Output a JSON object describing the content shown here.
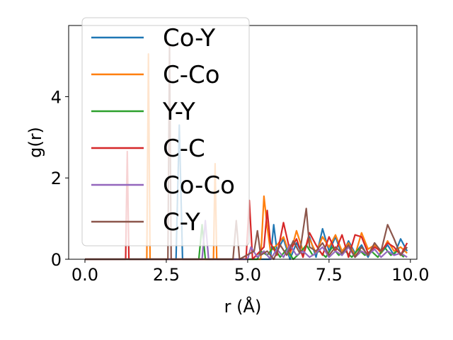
{
  "chart_data": {
    "type": "line",
    "xlabel": "r (Å)",
    "ylabel": "g(r)",
    "xlim": [
      -0.5,
      10.2
    ],
    "ylim": [
      0,
      5.75
    ],
    "xticks": [
      0.0,
      2.5,
      5.0,
      7.5,
      10.0
    ],
    "xtick_labels": [
      "0.0",
      "2.5",
      "5.0",
      "7.5",
      "10.0"
    ],
    "yticks": [
      0,
      2,
      4
    ],
    "ytick_labels": [
      "0",
      "2",
      "4"
    ],
    "grid": false,
    "legend_position": "upper-left",
    "series": [
      {
        "name": "Co-Y",
        "color": "#1f77b4",
        "points": [
          [
            0,
            0
          ],
          [
            2.8,
            0
          ],
          [
            2.9,
            3.3
          ],
          [
            3.0,
            0
          ],
          [
            5.7,
            0
          ],
          [
            5.8,
            0.85
          ],
          [
            5.9,
            0.2
          ],
          [
            6.1,
            0.5
          ],
          [
            6.3,
            0.0
          ],
          [
            6.5,
            0.4
          ],
          [
            6.7,
            0.1
          ],
          [
            6.9,
            0.55
          ],
          [
            7.1,
            0.05
          ],
          [
            7.3,
            0.75
          ],
          [
            7.5,
            0.2
          ],
          [
            7.7,
            0.55
          ],
          [
            7.9,
            0.1
          ],
          [
            8.1,
            0.45
          ],
          [
            8.3,
            0.15
          ],
          [
            8.5,
            0.35
          ],
          [
            8.7,
            0.05
          ],
          [
            8.9,
            0.4
          ],
          [
            9.1,
            0.15
          ],
          [
            9.3,
            0.35
          ],
          [
            9.5,
            0.1
          ],
          [
            9.7,
            0.5
          ],
          [
            9.9,
            0.2
          ]
        ]
      },
      {
        "name": "C-Co",
        "color": "#ff7f0e",
        "points": [
          [
            0,
            0
          ],
          [
            1.9,
            0
          ],
          [
            1.95,
            5.05
          ],
          [
            2.0,
            0
          ],
          [
            3.95,
            0
          ],
          [
            4.0,
            2.35
          ],
          [
            4.05,
            0
          ],
          [
            5.4,
            0
          ],
          [
            5.5,
            1.55
          ],
          [
            5.6,
            0.8
          ],
          [
            5.7,
            0.2
          ],
          [
            5.9,
            0.35
          ],
          [
            6.1,
            0.55
          ],
          [
            6.3,
            0.1
          ],
          [
            6.5,
            0.7
          ],
          [
            6.7,
            0.2
          ],
          [
            6.9,
            0.5
          ],
          [
            7.1,
            0.15
          ],
          [
            7.3,
            0.55
          ],
          [
            7.5,
            0.3
          ],
          [
            7.7,
            0.6
          ],
          [
            7.9,
            0.2
          ],
          [
            8.1,
            0.4
          ],
          [
            8.3,
            0.1
          ],
          [
            8.5,
            0.65
          ],
          [
            8.7,
            0.25
          ],
          [
            8.9,
            0.35
          ],
          [
            9.1,
            0.15
          ],
          [
            9.3,
            0.45
          ],
          [
            9.5,
            0.2
          ],
          [
            9.7,
            0.3
          ],
          [
            9.9,
            0.15
          ]
        ]
      },
      {
        "name": "Y-Y",
        "color": "#2ca02c",
        "points": [
          [
            0,
            0
          ],
          [
            3.5,
            0
          ],
          [
            3.6,
            0.85
          ],
          [
            3.7,
            0
          ],
          [
            5.3,
            0
          ],
          [
            5.4,
            0.2
          ],
          [
            5.6,
            0.1
          ],
          [
            5.8,
            0.3
          ],
          [
            6.0,
            0.05
          ],
          [
            6.2,
            0.25
          ],
          [
            6.4,
            0.0
          ],
          [
            6.6,
            0.15
          ],
          [
            6.8,
            0.35
          ],
          [
            7.0,
            0.1
          ],
          [
            7.2,
            0.2
          ],
          [
            7.4,
            0.05
          ],
          [
            7.6,
            0.3
          ],
          [
            7.8,
            0.1
          ],
          [
            8.0,
            0.2
          ],
          [
            8.2,
            0.05
          ],
          [
            8.4,
            0.25
          ],
          [
            8.6,
            0.1
          ],
          [
            8.8,
            0.2
          ],
          [
            9.0,
            0.05
          ],
          [
            9.2,
            0.3
          ],
          [
            9.4,
            0.1
          ],
          [
            9.6,
            0.2
          ],
          [
            9.8,
            0.05
          ]
        ]
      },
      {
        "name": "C-C",
        "color": "#d62728",
        "points": [
          [
            0,
            0
          ],
          [
            1.25,
            0
          ],
          [
            1.3,
            2.65
          ],
          [
            1.35,
            0
          ],
          [
            4.95,
            0
          ],
          [
            5.05,
            1.45
          ],
          [
            5.15,
            0
          ],
          [
            5.5,
            0.3
          ],
          [
            5.6,
            1.2
          ],
          [
            5.7,
            0.4
          ],
          [
            5.9,
            0.1
          ],
          [
            6.1,
            0.9
          ],
          [
            6.3,
            0.2
          ],
          [
            6.5,
            0.5
          ],
          [
            6.7,
            0.05
          ],
          [
            6.9,
            0.65
          ],
          [
            7.1,
            0.35
          ],
          [
            7.3,
            0.1
          ],
          [
            7.5,
            0.55
          ],
          [
            7.7,
            0.2
          ],
          [
            7.9,
            0.6
          ],
          [
            8.1,
            0.05
          ],
          [
            8.3,
            0.6
          ],
          [
            8.5,
            0.55
          ],
          [
            8.7,
            0.15
          ],
          [
            8.9,
            0.3
          ],
          [
            9.1,
            0.2
          ],
          [
            9.3,
            0.4
          ],
          [
            9.5,
            0.3
          ],
          [
            9.7,
            0.1
          ],
          [
            9.9,
            0.4
          ]
        ]
      },
      {
        "name": "Co-Co",
        "color": "#9467bd",
        "points": [
          [
            0,
            0
          ],
          [
            3.6,
            0
          ],
          [
            3.7,
            0.95
          ],
          [
            3.8,
            0
          ],
          [
            5.0,
            0
          ],
          [
            5.1,
            0.3
          ],
          [
            5.3,
            0.05
          ],
          [
            5.5,
            0.2
          ],
          [
            5.7,
            0.0
          ],
          [
            5.9,
            0.25
          ],
          [
            6.1,
            0.05
          ],
          [
            6.3,
            0.35
          ],
          [
            6.5,
            0.1
          ],
          [
            6.7,
            0.2
          ],
          [
            6.9,
            0.05
          ],
          [
            7.1,
            0.15
          ],
          [
            7.3,
            0.3
          ],
          [
            7.5,
            0.05
          ],
          [
            7.7,
            0.2
          ],
          [
            7.9,
            0.1
          ],
          [
            8.1,
            0.3
          ],
          [
            8.3,
            0.05
          ],
          [
            8.5,
            0.2
          ],
          [
            8.7,
            0.1
          ],
          [
            8.9,
            0.25
          ],
          [
            9.1,
            0.05
          ],
          [
            9.3,
            0.2
          ],
          [
            9.5,
            0.1
          ],
          [
            9.7,
            0.15
          ],
          [
            9.9,
            0.05
          ]
        ]
      },
      {
        "name": "C-Y",
        "color": "#8c564b",
        "points": [
          [
            0,
            0
          ],
          [
            2.55,
            0
          ],
          [
            2.6,
            5.25
          ],
          [
            2.65,
            0
          ],
          [
            4.55,
            0
          ],
          [
            4.65,
            0.95
          ],
          [
            4.75,
            0
          ],
          [
            5.2,
            0.2
          ],
          [
            5.3,
            0.7
          ],
          [
            5.4,
            0.1
          ],
          [
            5.6,
            0.2
          ],
          [
            5.8,
            0.0
          ],
          [
            6.0,
            0.35
          ],
          [
            6.2,
            0.1
          ],
          [
            6.4,
            0.45
          ],
          [
            6.6,
            0.15
          ],
          [
            6.8,
            1.25
          ],
          [
            6.9,
            0.3
          ],
          [
            7.1,
            0.2
          ],
          [
            7.3,
            0.4
          ],
          [
            7.5,
            0.1
          ],
          [
            7.7,
            0.3
          ],
          [
            7.9,
            0.15
          ],
          [
            8.1,
            0.35
          ],
          [
            8.3,
            0.05
          ],
          [
            8.5,
            0.3
          ],
          [
            8.7,
            0.1
          ],
          [
            8.9,
            0.4
          ],
          [
            9.1,
            0.2
          ],
          [
            9.3,
            0.85
          ],
          [
            9.5,
            0.5
          ],
          [
            9.7,
            0.1
          ],
          [
            9.9,
            0.3
          ]
        ]
      }
    ]
  }
}
